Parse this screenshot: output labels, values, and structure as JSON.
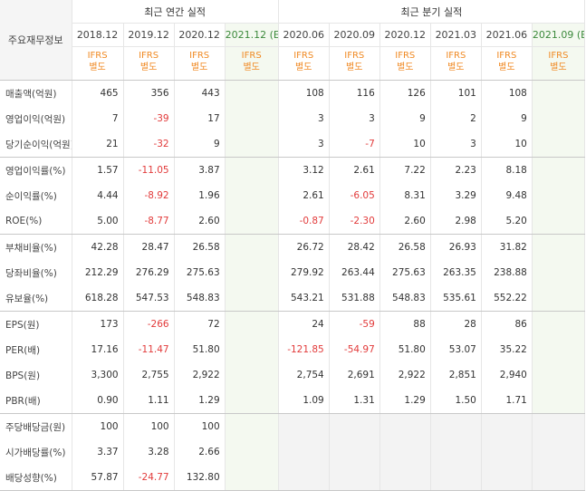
{
  "header": {
    "corner": "주요재무정보",
    "annual_title": "최근 연간 실적",
    "quarter_title": "최근 분기 실적"
  },
  "periods": {
    "annual": [
      "2018.12",
      "2019.12",
      "2020.12",
      "2021.12"
    ],
    "annual_est_mark": "(E)",
    "quarter": [
      "2020.06",
      "2020.09",
      "2020.12",
      "2021.03",
      "2021.06",
      "2021.09"
    ],
    "quarter_est_mark": "(E)"
  },
  "ifrs": {
    "line1": "IFRS",
    "line2": "별도"
  },
  "rows": [
    {
      "label": "매출액(억원)",
      "values": [
        "465",
        "356",
        "443",
        "",
        "108",
        "116",
        "126",
        "101",
        "108",
        ""
      ]
    },
    {
      "label": "영업이익(억원)",
      "values": [
        "7",
        "-39",
        "17",
        "",
        "3",
        "3",
        "9",
        "2",
        "9",
        ""
      ]
    },
    {
      "label": "당기순이익(억원)",
      "values": [
        "21",
        "-32",
        "9",
        "",
        "3",
        "-7",
        "10",
        "3",
        "10",
        ""
      ]
    },
    {
      "label": "영업이익률(%)",
      "values": [
        "1.57",
        "-11.05",
        "3.87",
        "",
        "3.12",
        "2.61",
        "7.22",
        "2.23",
        "8.18",
        ""
      ]
    },
    {
      "label": "순이익률(%)",
      "values": [
        "4.44",
        "-8.92",
        "1.96",
        "",
        "2.61",
        "-6.05",
        "8.31",
        "3.29",
        "9.48",
        ""
      ]
    },
    {
      "label": "ROE(%)",
      "values": [
        "5.00",
        "-8.77",
        "2.60",
        "",
        "-0.87",
        "-2.30",
        "2.60",
        "2.98",
        "5.20",
        ""
      ]
    },
    {
      "label": "부채비율(%)",
      "values": [
        "42.28",
        "28.47",
        "26.58",
        "",
        "26.72",
        "28.42",
        "26.58",
        "26.93",
        "31.82",
        ""
      ]
    },
    {
      "label": "당좌비율(%)",
      "values": [
        "212.29",
        "276.29",
        "275.63",
        "",
        "279.92",
        "263.44",
        "275.63",
        "263.35",
        "238.88",
        ""
      ]
    },
    {
      "label": "유보율(%)",
      "values": [
        "618.28",
        "547.53",
        "548.83",
        "",
        "543.21",
        "531.88",
        "548.83",
        "535.61",
        "552.22",
        ""
      ]
    },
    {
      "label": "EPS(원)",
      "values": [
        "173",
        "-266",
        "72",
        "",
        "24",
        "-59",
        "88",
        "28",
        "86",
        ""
      ]
    },
    {
      "label": "PER(배)",
      "values": [
        "17.16",
        "-11.47",
        "51.80",
        "",
        "-121.85",
        "-54.97",
        "51.80",
        "53.07",
        "35.22",
        ""
      ]
    },
    {
      "label": "BPS(원)",
      "values": [
        "3,300",
        "2,755",
        "2,922",
        "",
        "2,754",
        "2,691",
        "2,922",
        "2,851",
        "2,940",
        ""
      ]
    },
    {
      "label": "PBR(배)",
      "values": [
        "0.90",
        "1.11",
        "1.29",
        "",
        "1.09",
        "1.31",
        "1.29",
        "1.50",
        "1.71",
        ""
      ]
    },
    {
      "label": "주당배당금(원)",
      "values": [
        "100",
        "100",
        "100",
        "",
        "",
        "",
        "",
        "",
        "",
        ""
      ]
    },
    {
      "label": "시가배당률(%)",
      "values": [
        "3.37",
        "3.28",
        "2.66",
        "",
        "",
        "",
        "",
        "",
        "",
        ""
      ]
    },
    {
      "label": "배당성향(%)",
      "values": [
        "57.87",
        "-24.77",
        "132.80",
        "",
        "",
        "",
        "",
        "",
        "",
        ""
      ]
    }
  ],
  "colors": {
    "negative": "#e23b3b",
    "ifrs": "#f08a24",
    "estimate_bg": "#f4f9f0",
    "estimate_text": "#3d8a3d"
  }
}
